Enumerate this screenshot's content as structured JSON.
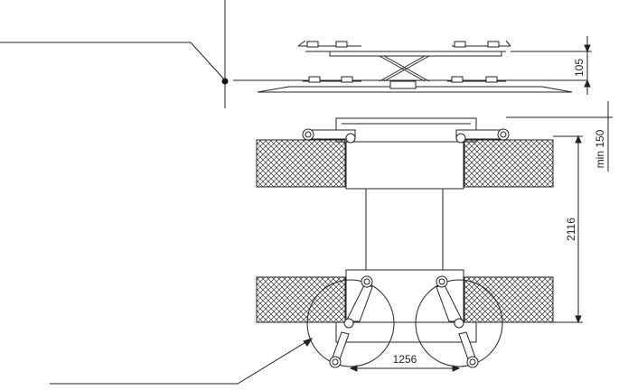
{
  "drawing": {
    "dimensions": {
      "d105": "105",
      "min150": "min 150",
      "d2116": "2116",
      "d1256": "1256"
    }
  }
}
